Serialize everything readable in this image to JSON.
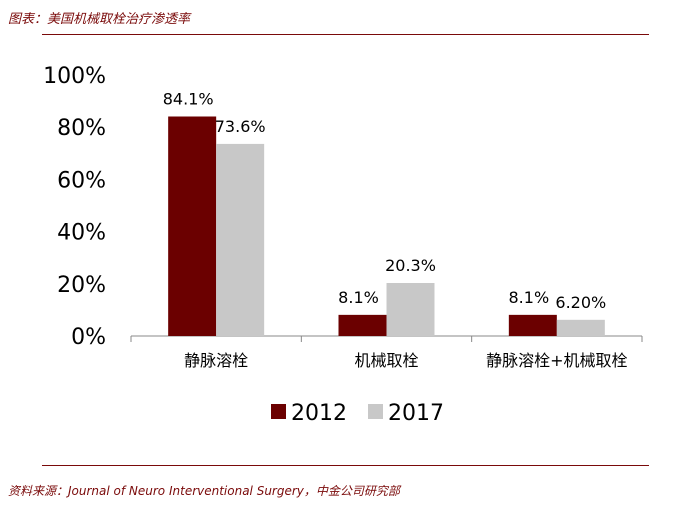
{
  "header": {
    "title": "图表：美国机械取栓治疗渗透率"
  },
  "footer": {
    "source": "资料来源：Journal of Neuro   Interventional Surgery，中金公司研究部"
  },
  "colors": {
    "accent": "#7a0a0a",
    "series_2012": "#6b0000",
    "series_2017": "#c8c8c8"
  },
  "chart_data": {
    "type": "bar",
    "categories": [
      "静脉溶栓",
      "机械取栓",
      "静脉溶栓+机械取栓"
    ],
    "series": [
      {
        "name": "2012",
        "values": [
          84.1,
          8.1,
          8.1
        ],
        "labels": [
          "84.1%",
          "8.1%",
          "8.1%"
        ],
        "color": "#6b0000"
      },
      {
        "name": "2017",
        "values": [
          73.6,
          20.3,
          6.2
        ],
        "labels": [
          "73.6%",
          "20.3%",
          "6.20%"
        ],
        "color": "#c8c8c8"
      }
    ],
    "yticks": [
      "0%",
      "20%",
      "40%",
      "60%",
      "80%",
      "100%"
    ],
    "ylim": [
      0,
      100
    ],
    "legend_position": "bottom",
    "grid": false
  }
}
